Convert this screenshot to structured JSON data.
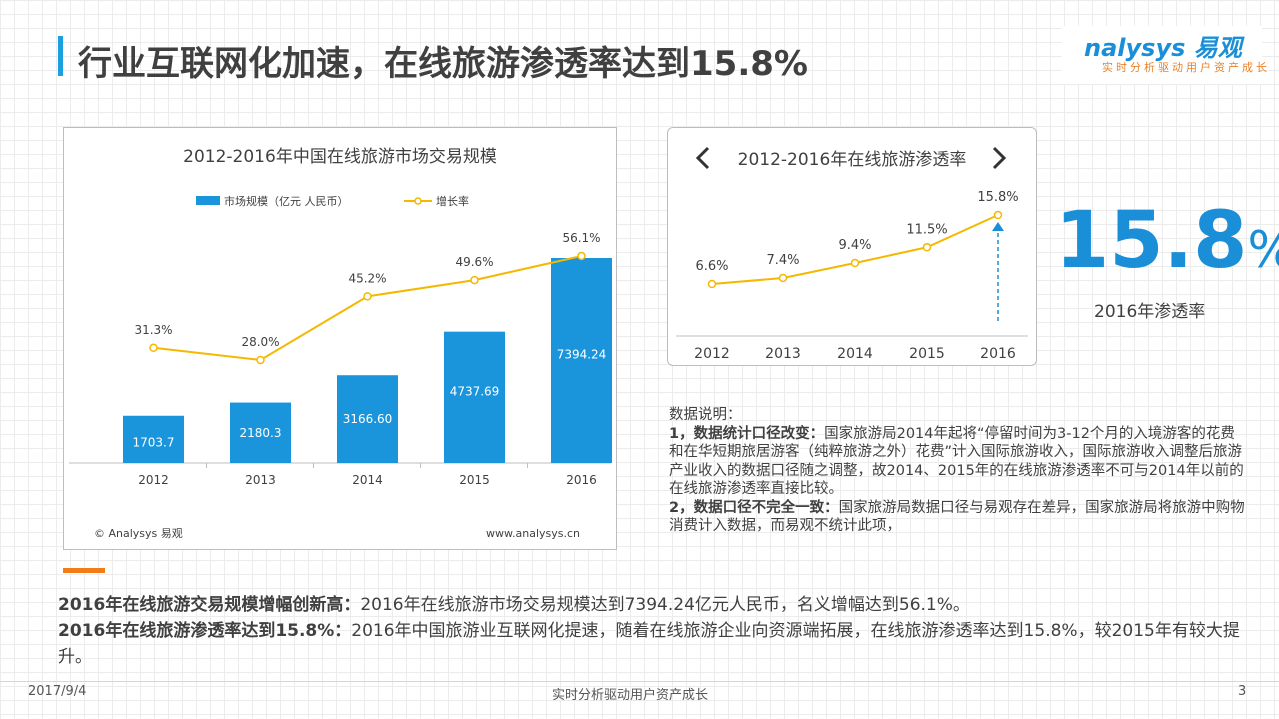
{
  "header": {
    "title": "行业互联网化加速，在线旅游渗透率达到15.8%"
  },
  "logo": {
    "name": "nalysys 易观",
    "slogan": "实时分析驱动用户资产成长"
  },
  "chart_data": [
    {
      "type": "bar",
      "title": "2012-2016年中国在线旅游市场交易规模",
      "categories": [
        "2012",
        "2013",
        "2014",
        "2015",
        "2016"
      ],
      "series": [
        {
          "name": "市场规模（亿元 人民币）",
          "type": "bar",
          "values": [
            1703.7,
            2180.3,
            3166.6,
            4737.69,
            7394.24
          ],
          "labels": [
            "1703.7",
            "2180.3",
            "3166.60",
            "4737.69",
            "7394.24"
          ],
          "color": "#1a95dc"
        },
        {
          "name": "增长率",
          "type": "line",
          "values": [
            31.3,
            28.0,
            45.2,
            49.6,
            56.1
          ],
          "labels": [
            "31.3%",
            "28.0%",
            "45.2%",
            "49.6%",
            "56.1%"
          ],
          "color": "#f5b800"
        }
      ],
      "legend": "top",
      "source": "© Analysys 易观",
      "website": "www.analysys.cn"
    },
    {
      "type": "line",
      "title": "2012-2016年在线旅游渗透率",
      "categories": [
        "2012",
        "2013",
        "2014",
        "2015",
        "2016"
      ],
      "series": [
        {
          "values": [
            6.6,
            7.4,
            9.4,
            11.5,
            15.8
          ],
          "labels": [
            "6.6%",
            "7.4%",
            "9.4%",
            "11.5%",
            "15.8%"
          ],
          "color": "#f5b800"
        }
      ]
    }
  ],
  "highlight": {
    "value": "15.8",
    "unit": "%",
    "label": "2016年渗透率"
  },
  "notes": {
    "heading": "数据说明：",
    "items": [
      {
        "title": "1，数据统计口径改变：",
        "text": "国家旅游局2014年起将“停留时间为3-12个月的入境游客的花费和在华短期旅居游客（纯粹旅游之外）花费”计入国际旅游收入，国际旅游收入调整后旅游产业收入的数据口径随之调整，故2014、2015年的在线旅游渗透率不可与2014年以前的在线旅游渗透率直接比较。"
      },
      {
        "title": "2，数据口径不完全一致：",
        "text": "国家旅游局数据口径与易观存在差异，国家旅游局将旅游中购物消费计入数据，而易观不统计此项，"
      }
    ]
  },
  "summary": [
    {
      "title": "2016年在线旅游交易规模增幅创新高：",
      "text": "2016年在线旅游市场交易规模达到7394.24亿元人民币，名义增幅达到56.1%。"
    },
    {
      "title": "2016年在线旅游渗透率达到15.8%：",
      "text": "2016年中国旅游业互联网化提速，随着在线旅游企业向资源端拓展，在线旅游渗透率达到15.8%，较2015年有较大提升。"
    }
  ],
  "footer": {
    "date": "2017/9/4",
    "slogan": "实时分析驱动用户资产成长",
    "page": "3"
  }
}
